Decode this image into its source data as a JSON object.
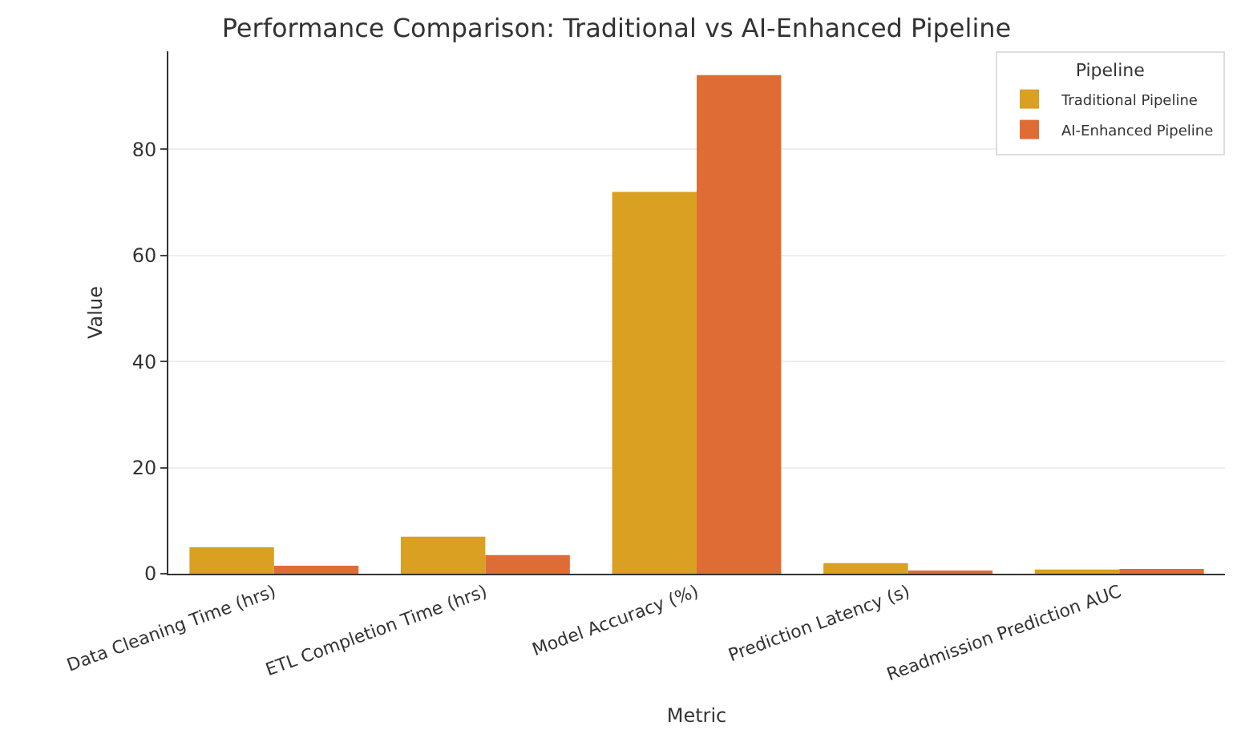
{
  "chart_data": {
    "type": "bar",
    "title": "Performance Comparison: Traditional vs AI-Enhanced Pipeline",
    "xlabel": "Metric",
    "ylabel": "Value",
    "legend_title": "Pipeline",
    "categories": [
      "Data Cleaning Time (hrs)",
      "ETL Completion Time (hrs)",
      "Model Accuracy (%)",
      "Prediction Latency (s)",
      "Readmission Prediction AUC"
    ],
    "series": [
      {
        "name": "Traditional Pipeline",
        "color": "#daa021",
        "values": [
          5,
          7,
          72,
          2,
          0.8
        ]
      },
      {
        "name": "AI-Enhanced Pipeline",
        "color": "#e06c35",
        "values": [
          1.5,
          3.5,
          94,
          0.5,
          0.9
        ]
      }
    ],
    "ylim": [
      0,
      98.5
    ],
    "yticks": [
      0,
      20,
      40,
      60,
      80
    ],
    "grid": "y",
    "legend": "top right"
  }
}
